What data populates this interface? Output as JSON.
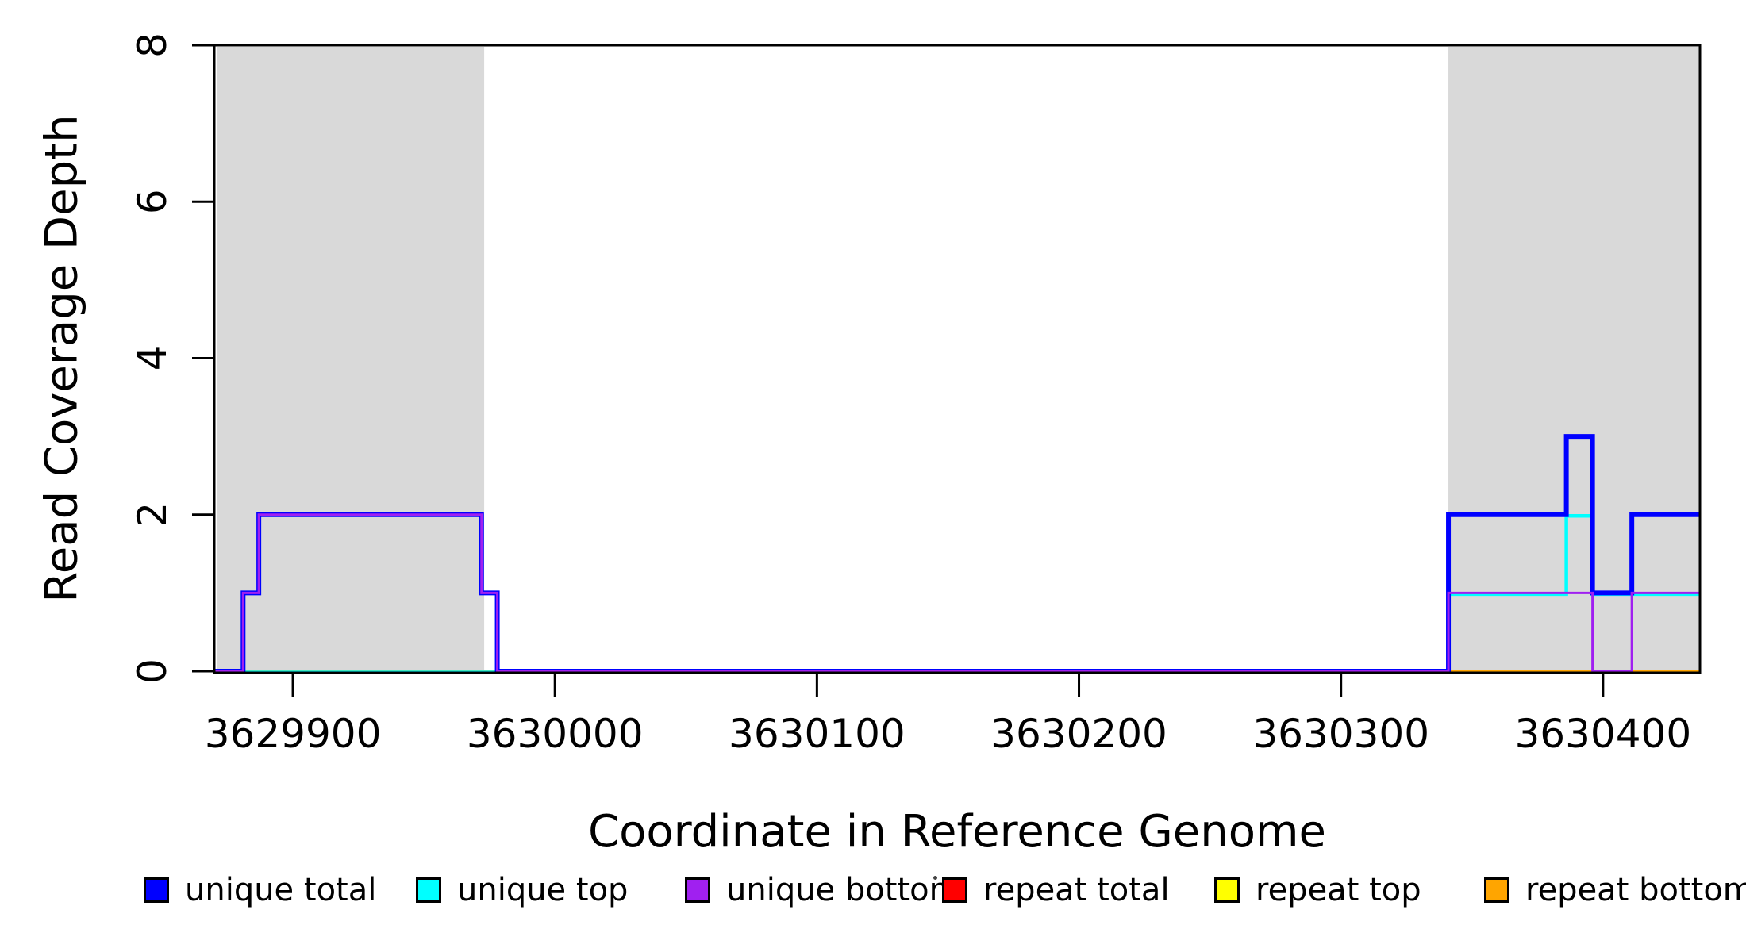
{
  "chart_data": {
    "type": "line",
    "subtype": "step-coverage",
    "title": "",
    "xlabel": "Coordinate in Reference Genome",
    "ylabel": "Read Coverage Depth",
    "xlim": [
      3629870,
      3630437
    ],
    "ylim": [
      0,
      8
    ],
    "x_ticks": [
      3629900,
      3630000,
      3630100,
      3630200,
      3630300,
      3630400
    ],
    "y_ticks": [
      0,
      2,
      4,
      6,
      8
    ],
    "grid": false,
    "legend_position": "bottom",
    "axis_color": "#000000",
    "shaded_regions": [
      {
        "name": "left-gray-band",
        "x0": 3629871,
        "x1": 3629973,
        "color": "#D9D9D9"
      },
      {
        "name": "right-gray-band",
        "x0": 3630341,
        "x1": 3630437,
        "color": "#D9D9D9"
      }
    ],
    "series": [
      {
        "name": "unique total",
        "color": "#0000FF",
        "steps": [
          [
            3629870,
            0
          ],
          [
            3629881,
            1
          ],
          [
            3629887,
            2
          ],
          [
            3629972,
            1
          ],
          [
            3629978,
            0
          ],
          [
            3630341,
            2
          ],
          [
            3630386,
            3
          ],
          [
            3630396,
            1
          ],
          [
            3630411,
            2
          ],
          [
            3630437,
            2
          ]
        ]
      },
      {
        "name": "unique top",
        "color": "#00FFFF",
        "steps": [
          [
            3629870,
            0
          ],
          [
            3630341,
            1
          ],
          [
            3630386,
            2
          ],
          [
            3630396,
            1
          ],
          [
            3630437,
            1
          ]
        ]
      },
      {
        "name": "unique bottom",
        "color": "#A020F0",
        "steps": [
          [
            3629870,
            0
          ],
          [
            3629881,
            1
          ],
          [
            3629887,
            2
          ],
          [
            3629972,
            1
          ],
          [
            3629978,
            0
          ],
          [
            3630341,
            1
          ],
          [
            3630396,
            0
          ],
          [
            3630411,
            1
          ],
          [
            3630437,
            1
          ]
        ]
      },
      {
        "name": "repeat total",
        "color": "#FF0000",
        "steps": [
          [
            3629870,
            0
          ],
          [
            3630437,
            0
          ]
        ]
      },
      {
        "name": "repeat top",
        "color": "#FFFF00",
        "steps": [
          [
            3629870,
            0
          ],
          [
            3630437,
            0
          ]
        ]
      },
      {
        "name": "repeat bottom",
        "color": "#FFA500",
        "steps": [
          [
            3629870,
            0
          ],
          [
            3630437,
            0
          ]
        ]
      }
    ],
    "draw_order": [
      "repeat total",
      "repeat top",
      "repeat bottom",
      "unique top",
      "unique total",
      "unique bottom"
    ],
    "stray_mark_near_legend": true
  }
}
